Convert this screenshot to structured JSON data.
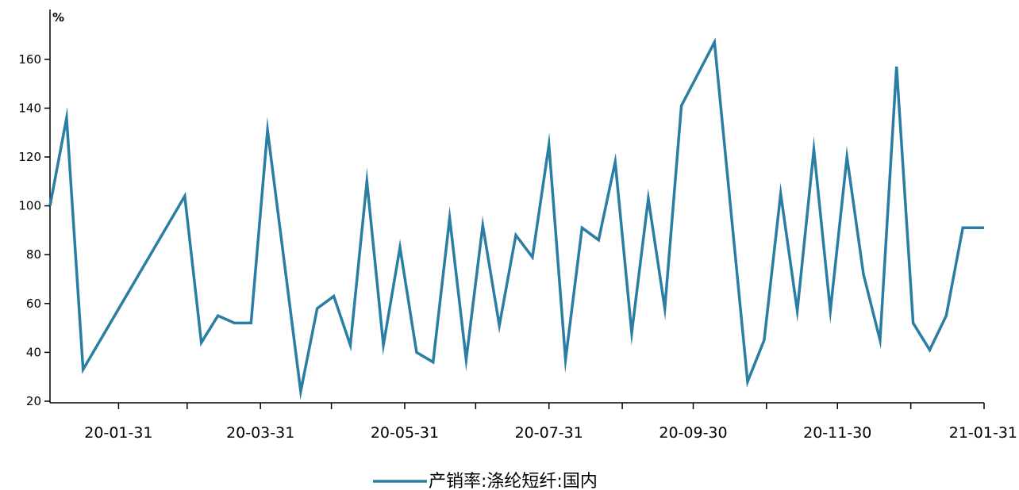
{
  "chart_data": {
    "type": "line",
    "y_unit": "%",
    "ylim": [
      20,
      170
    ],
    "y_ticks": [
      20,
      40,
      60,
      80,
      100,
      120,
      140,
      160
    ],
    "x_range": [
      "2020-01-02",
      "2021-01-31"
    ],
    "x_tick_labels": [
      "20-01-31",
      "20-03-31",
      "20-05-31",
      "20-07-31",
      "20-09-30",
      "20-11-30",
      "21-01-31"
    ],
    "x_tick_dates": [
      "2020-01-31",
      "2020-02-29",
      "2020-03-31",
      "2020-04-30",
      "2020-05-31",
      "2020-06-30",
      "2020-07-31",
      "2020-08-31",
      "2020-09-30",
      "2020-10-31",
      "2020-11-30",
      "2020-12-31",
      "2021-01-31"
    ],
    "x_labeled_ticks": [
      "2020-01-31",
      "2020-03-31",
      "2020-05-31",
      "2020-07-31",
      "2020-09-30",
      "2020-11-30",
      "2021-01-31"
    ],
    "grid": false,
    "legend_position": "bottom-center",
    "series": [
      {
        "name": "产销率:涤纶短纤:国内",
        "color": "#2a7ea3",
        "x": [
          "2020-01-02",
          "2020-01-09",
          "2020-01-16",
          "2020-02-28",
          "2020-03-06",
          "2020-03-13",
          "2020-03-20",
          "2020-03-27",
          "2020-04-03",
          "2020-04-17",
          "2020-04-24",
          "2020-05-01",
          "2020-05-08",
          "2020-05-15",
          "2020-05-22",
          "2020-05-29",
          "2020-06-05",
          "2020-06-12",
          "2020-06-19",
          "2020-06-26",
          "2020-07-03",
          "2020-07-10",
          "2020-07-17",
          "2020-07-24",
          "2020-07-31",
          "2020-08-07",
          "2020-08-14",
          "2020-08-21",
          "2020-08-28",
          "2020-09-04",
          "2020-09-11",
          "2020-09-18",
          "2020-09-25",
          "2020-10-09",
          "2020-10-23",
          "2020-10-30",
          "2020-11-06",
          "2020-11-13",
          "2020-11-20",
          "2020-11-27",
          "2020-12-04",
          "2020-12-11",
          "2020-12-18",
          "2020-12-25",
          "2021-01-01",
          "2021-01-08",
          "2021-01-15",
          "2021-01-22",
          "2021-01-31"
        ],
        "values": [
          100,
          136,
          33,
          104,
          44,
          55,
          52,
          52,
          131,
          24,
          58,
          63,
          43,
          110,
          43,
          83,
          40,
          36,
          95,
          37,
          92,
          51,
          88,
          79,
          125,
          37,
          91,
          86,
          118,
          48,
          103,
          58,
          141,
          167,
          28,
          45,
          105,
          57,
          123,
          57,
          120,
          72,
          45,
          157,
          52,
          41,
          55,
          91,
          91
        ]
      }
    ]
  }
}
